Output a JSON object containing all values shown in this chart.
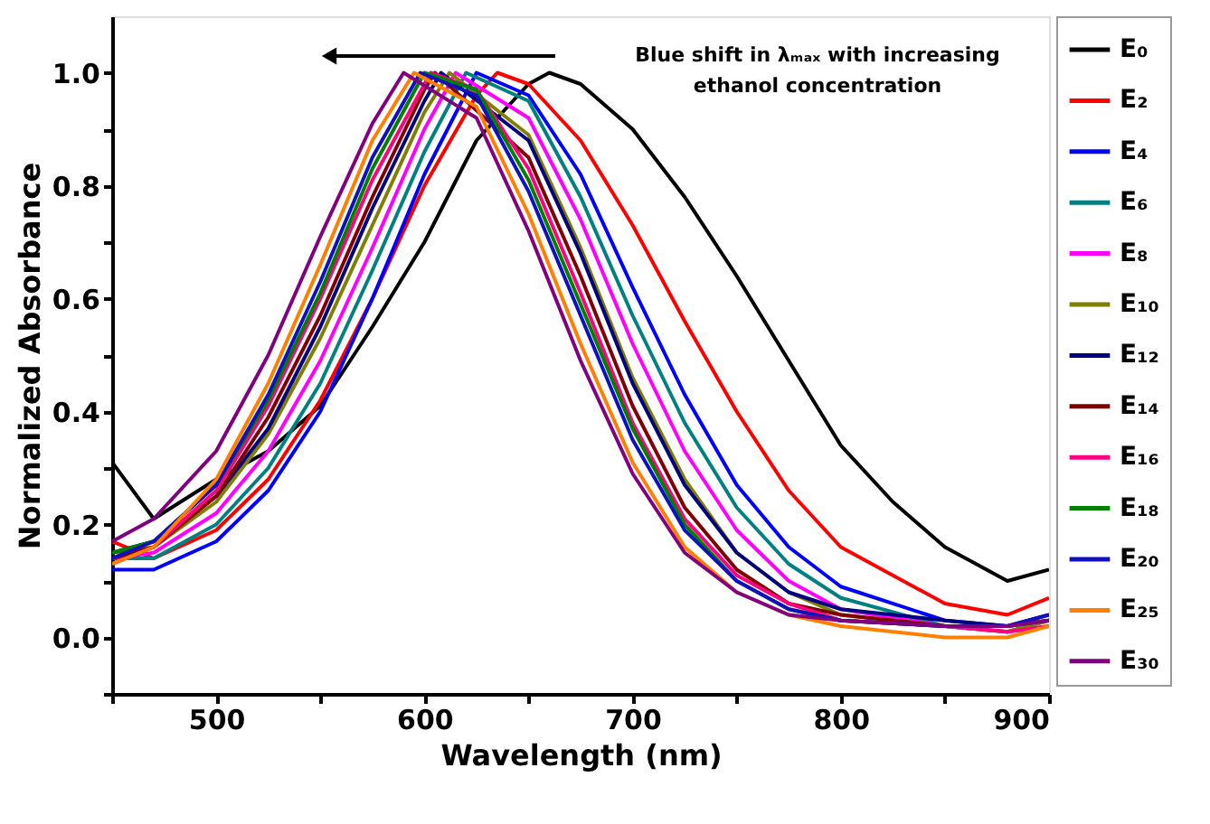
{
  "chart_data": {
    "type": "line",
    "xlabel": "Wavelength (nm)",
    "ylabel": "Normalized Absorbance",
    "annotations": [
      "Blue shift in λₘₐₓ with increasing\nethanol concentration"
    ],
    "xlim": [
      450,
      900
    ],
    "ylim": [
      -0.1,
      1.1
    ],
    "xticks": [
      {
        "value": 450,
        "label": null
      },
      500,
      {
        "value": 550,
        "label": null
      },
      600,
      {
        "value": 650,
        "label": null
      },
      700,
      {
        "value": 750,
        "label": null
      },
      800,
      {
        "value": 850,
        "label": null
      },
      900
    ],
    "yticks": [
      {
        "value": -0.1,
        "label": null
      },
      {
        "value": 0,
        "label": "0.0"
      },
      {
        "value": 0.1,
        "label": null
      },
      0.2,
      {
        "value": 0.3,
        "label": null
      },
      0.4,
      {
        "value": 0.5,
        "label": null
      },
      0.6,
      {
        "value": 0.7,
        "label": null
      },
      0.8,
      {
        "value": 0.9,
        "label": null
      },
      {
        "value": 1,
        "label": "1.0"
      }
    ],
    "grid": false,
    "legend": "right",
    "marker": "none",
    "line_style": "solid",
    "series": [
      {
        "name": "E₀",
        "color": "#000000",
        "x": [
          450,
          470,
          500,
          525,
          550,
          575,
          600,
          625,
          650,
          660,
          675,
          700,
          725,
          750,
          775,
          800,
          825,
          850,
          880,
          900
        ],
        "values": [
          0.31,
          0.21,
          0.28,
          0.33,
          0.41,
          0.55,
          0.7,
          0.88,
          0.98,
          1.0,
          0.98,
          0.9,
          0.78,
          0.64,
          0.49,
          0.34,
          0.24,
          0.16,
          0.1,
          0.12
        ]
      },
      {
        "name": "E₂",
        "color": "#ff0000",
        "x": [
          450,
          470,
          500,
          525,
          550,
          575,
          600,
          625,
          635,
          650,
          675,
          700,
          725,
          750,
          775,
          800,
          850,
          880,
          900
        ],
        "values": [
          0.17,
          0.14,
          0.19,
          0.28,
          0.42,
          0.6,
          0.8,
          0.96,
          1.0,
          0.98,
          0.88,
          0.73,
          0.56,
          0.4,
          0.26,
          0.16,
          0.06,
          0.04,
          0.07
        ]
      },
      {
        "name": "E₄",
        "color": "#0000ff",
        "x": [
          450,
          470,
          500,
          525,
          550,
          575,
          600,
          625,
          650,
          675,
          700,
          725,
          750,
          775,
          800,
          850,
          880,
          900
        ],
        "values": [
          0.12,
          0.12,
          0.17,
          0.26,
          0.4,
          0.6,
          0.82,
          1.0,
          0.96,
          0.82,
          0.62,
          0.43,
          0.27,
          0.16,
          0.09,
          0.03,
          0.02,
          0.03
        ]
      },
      {
        "name": "E₆",
        "color": "#008080",
        "x": [
          450,
          470,
          500,
          525,
          550,
          575,
          600,
          620,
          650,
          675,
          700,
          725,
          750,
          775,
          800,
          850,
          880,
          900
        ],
        "values": [
          0.14,
          0.14,
          0.2,
          0.3,
          0.45,
          0.65,
          0.86,
          1.0,
          0.95,
          0.78,
          0.57,
          0.38,
          0.23,
          0.13,
          0.07,
          0.02,
          0.01,
          0.03
        ]
      },
      {
        "name": "E₈",
        "color": "#ff00ff",
        "x": [
          450,
          470,
          500,
          525,
          550,
          575,
          600,
          615,
          650,
          675,
          700,
          725,
          750,
          775,
          800,
          850,
          880,
          900
        ],
        "values": [
          0.14,
          0.15,
          0.22,
          0.33,
          0.49,
          0.69,
          0.9,
          1.0,
          0.92,
          0.74,
          0.52,
          0.33,
          0.19,
          0.1,
          0.05,
          0.02,
          0.01,
          0.02
        ]
      },
      {
        "name": "E₁₀",
        "color": "#808000",
        "x": [
          450,
          470,
          500,
          525,
          550,
          575,
          600,
          612,
          650,
          675,
          700,
          725,
          750,
          775,
          800,
          850,
          880,
          900
        ],
        "values": [
          0.15,
          0.16,
          0.24,
          0.36,
          0.53,
          0.73,
          0.93,
          1.0,
          0.89,
          0.69,
          0.46,
          0.28,
          0.15,
          0.08,
          0.04,
          0.02,
          0.01,
          0.03
        ]
      },
      {
        "name": "E₁₂",
        "color": "#000080",
        "x": [
          450,
          470,
          500,
          525,
          550,
          575,
          600,
          608,
          650,
          675,
          700,
          725,
          750,
          775,
          800,
          850,
          880,
          900
        ],
        "values": [
          0.15,
          0.17,
          0.25,
          0.37,
          0.55,
          0.76,
          0.95,
          1.0,
          0.88,
          0.68,
          0.45,
          0.27,
          0.15,
          0.08,
          0.05,
          0.03,
          0.02,
          0.04
        ]
      },
      {
        "name": "E₁₄",
        "color": "#800000",
        "x": [
          450,
          470,
          500,
          525,
          550,
          575,
          600,
          605,
          650,
          675,
          700,
          725,
          750,
          775,
          800,
          850,
          880,
          900
        ],
        "values": [
          0.14,
          0.16,
          0.25,
          0.39,
          0.57,
          0.78,
          0.97,
          1.0,
          0.85,
          0.64,
          0.41,
          0.23,
          0.12,
          0.06,
          0.04,
          0.02,
          0.02,
          0.03
        ]
      },
      {
        "name": "E₁₆",
        "color": "#ff0080",
        "x": [
          450,
          470,
          500,
          525,
          550,
          575,
          603,
          625,
          650,
          675,
          700,
          725,
          750,
          775,
          800,
          850,
          880,
          900
        ],
        "values": [
          0.13,
          0.16,
          0.26,
          0.41,
          0.6,
          0.81,
          1.0,
          0.97,
          0.83,
          0.61,
          0.38,
          0.21,
          0.11,
          0.06,
          0.03,
          0.02,
          0.01,
          0.02
        ]
      },
      {
        "name": "E₁₈",
        "color": "#008000",
        "x": [
          450,
          470,
          500,
          525,
          550,
          575,
          600,
          625,
          650,
          675,
          700,
          725,
          750,
          775,
          800,
          850,
          880,
          900
        ],
        "values": [
          0.15,
          0.17,
          0.27,
          0.42,
          0.61,
          0.83,
          1.0,
          0.97,
          0.81,
          0.59,
          0.37,
          0.2,
          0.1,
          0.05,
          0.03,
          0.02,
          0.02,
          0.03
        ]
      },
      {
        "name": "E₂₀",
        "color": "#1010c0",
        "x": [
          450,
          470,
          500,
          525,
          550,
          575,
          598,
          625,
          650,
          675,
          700,
          725,
          750,
          775,
          800,
          850,
          880,
          900
        ],
        "values": [
          0.14,
          0.17,
          0.27,
          0.43,
          0.63,
          0.85,
          1.0,
          0.96,
          0.79,
          0.57,
          0.35,
          0.19,
          0.1,
          0.05,
          0.03,
          0.02,
          0.02,
          0.04
        ]
      },
      {
        "name": "E₂₅",
        "color": "#ff8000",
        "x": [
          450,
          470,
          500,
          525,
          550,
          575,
          595,
          625,
          650,
          675,
          700,
          725,
          750,
          775,
          800,
          850,
          880,
          900
        ],
        "values": [
          0.13,
          0.16,
          0.28,
          0.45,
          0.66,
          0.88,
          1.0,
          0.94,
          0.75,
          0.52,
          0.31,
          0.16,
          0.08,
          0.04,
          0.02,
          0.0,
          0.0,
          0.02
        ]
      },
      {
        "name": "E₃₀",
        "color": "#800080",
        "x": [
          450,
          470,
          500,
          525,
          550,
          575,
          590,
          625,
          650,
          675,
          700,
          725,
          750,
          775,
          800,
          850,
          880,
          900
        ],
        "values": [
          0.17,
          0.21,
          0.33,
          0.5,
          0.71,
          0.91,
          1.0,
          0.92,
          0.72,
          0.49,
          0.29,
          0.15,
          0.08,
          0.04,
          0.03,
          0.02,
          0.02,
          0.03
        ]
      }
    ]
  }
}
